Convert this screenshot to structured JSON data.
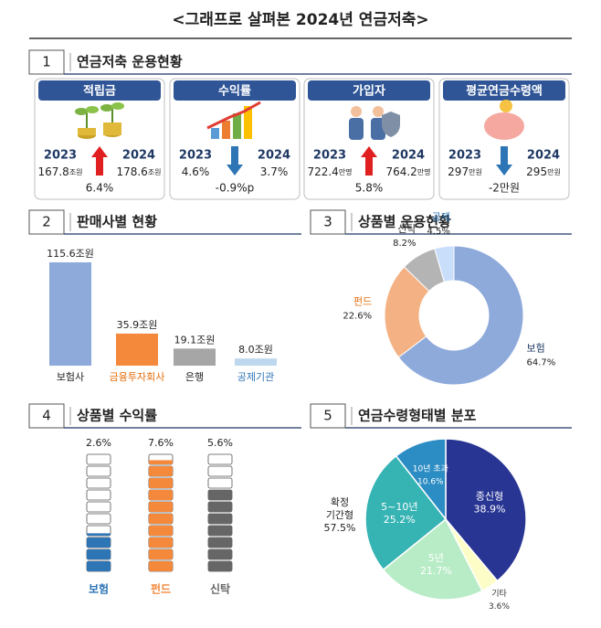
{
  "title": "<그래프로 살펴본 2024년 연금저축>",
  "summary": {
    "number": "1",
    "title": "연금저축 운용현황",
    "cards": [
      {
        "title": "적립금",
        "years": [
          "2023",
          "2024"
        ],
        "values": [
          {
            "value": "167.8",
            "unit": "조원"
          },
          {
            "value": "178.6",
            "unit": "조원"
          }
        ],
        "change": "6.4%",
        "direction": "up"
      },
      {
        "title": "수익률",
        "years": [
          "2023",
          "2024"
        ],
        "values": [
          {
            "value": "4.6%"
          },
          {
            "value": "3.7%"
          }
        ],
        "change": "-0.9%p",
        "direction": "down"
      },
      {
        "title": "가입자",
        "years": [
          "2023",
          "2024"
        ],
        "values": [
          {
            "value": "722.4",
            "unit": "만명"
          },
          {
            "value": "764.2",
            "unit": "만명"
          }
        ],
        "change": "5.8%",
        "direction": "up"
      },
      {
        "title": "평균연금수령액",
        "years": [
          "2023",
          "2024"
        ],
        "values": [
          {
            "value": "297",
            "unit": "만원"
          },
          {
            "value": "295",
            "unit": "만원"
          }
        ],
        "change": "-2만원",
        "direction": "down"
      }
    ]
  },
  "chart_data": [
    {
      "type": "bar",
      "number": "2",
      "title": "판매사별 현황",
      "categories": [
        "보험사",
        "금융투자회사",
        "은행",
        "공제기관"
      ],
      "values": [
        115.6,
        35.9,
        19.1,
        8.0
      ],
      "value_labels": [
        "115.6조원",
        "35.9조원",
        "19.1조원",
        "8.0조원"
      ],
      "colors": [
        "#8eaadb",
        "#f4893c",
        "#a6a6a6",
        "#bdd7ee"
      ],
      "label_colors": [
        "#222222",
        "#e46c0a",
        "#222222",
        "#2e75b6"
      ]
    },
    {
      "type": "donut",
      "number": "3",
      "title": "상품별 운용현황",
      "categories": [
        "보험",
        "펀드",
        "신탁",
        "공제"
      ],
      "values": [
        64.7,
        22.6,
        8.2,
        4.5
      ],
      "value_labels": [
        "64.7%",
        "22.6%",
        "8.2%",
        "4.5%"
      ],
      "colors": [
        "#8eaadb",
        "#f4b183",
        "#b4b4b4",
        "#c9defa"
      ],
      "label_colors": [
        "#1f3864",
        "#e46c0a",
        "#222222",
        "#2e75b6"
      ]
    },
    {
      "type": "blocks",
      "number": "4",
      "title": "상품별 수익률",
      "categories": [
        "보험",
        "펀드",
        "신탁"
      ],
      "values": [
        2.6,
        7.6,
        5.6
      ],
      "value_labels": [
        "2.6%",
        "7.6%",
        "5.6%"
      ],
      "colors": [
        "#2e75b6",
        "#f4893c",
        "#666666"
      ]
    },
    {
      "type": "pie",
      "number": "5",
      "title": "연금수령형태별 분포",
      "categories": [
        "종신형",
        "기타",
        "5년",
        "5~10년",
        "10년 초과"
      ],
      "values": [
        38.9,
        3.6,
        21.7,
        25.2,
        10.6
      ],
      "value_labels": [
        "38.9%",
        "3.6%",
        "21.7%",
        "25.2%",
        "10.6%"
      ],
      "colors": [
        "#283593",
        "#fdfdc8",
        "#b8ecc6",
        "#36b3b3",
        "#2c8cc4"
      ],
      "annotations": [
        {
          "lines": [
            "확정",
            "기간형"
          ],
          "value": 57.5,
          "value_label": "57.5%"
        }
      ]
    }
  ]
}
